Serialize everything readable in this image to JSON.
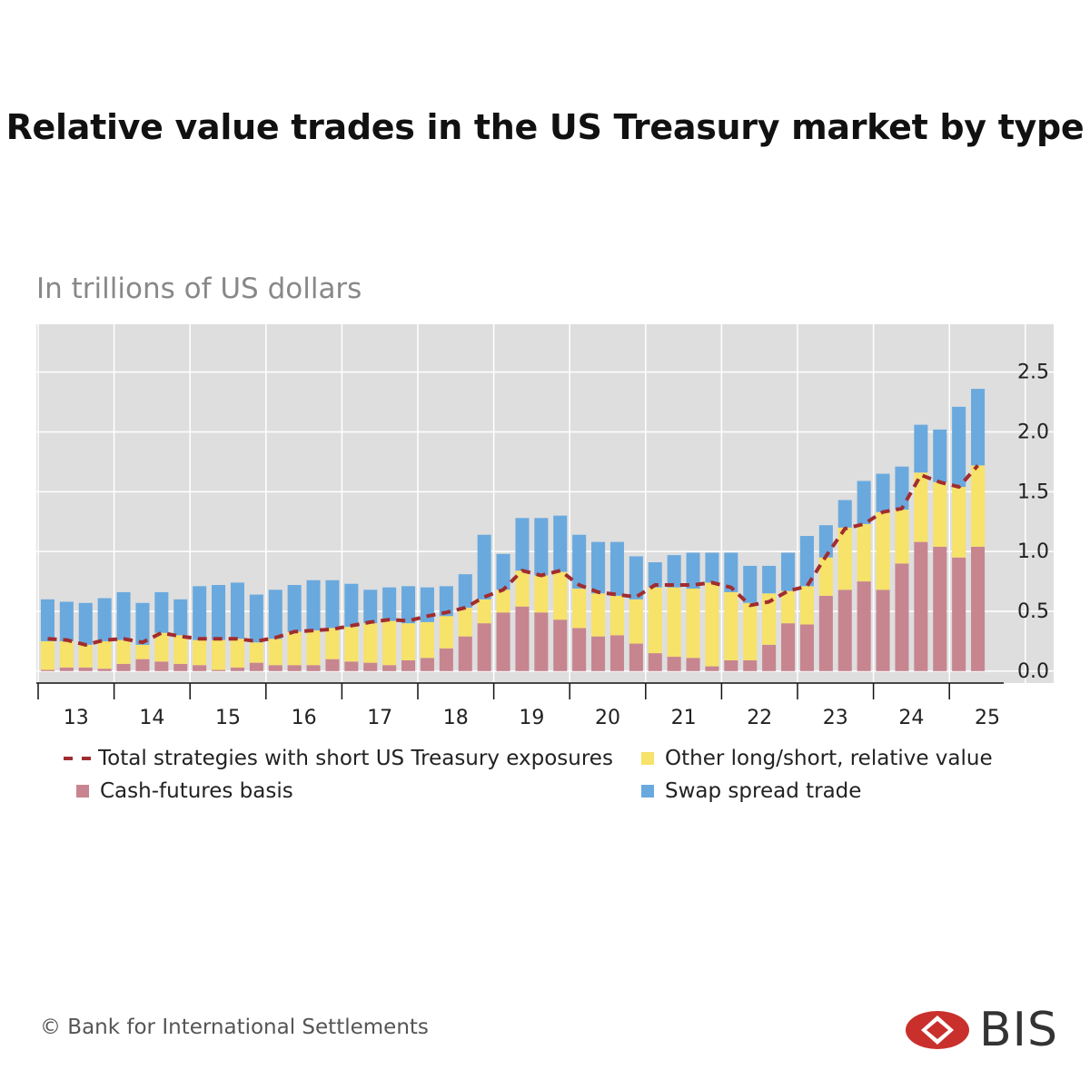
{
  "title": "Relative value trades in the US Treasury market by type",
  "subtitle": "In trillions of US dollars",
  "footer": "© Bank for International Settlements",
  "logo_text": "BIS",
  "colors": {
    "basis": "#c78590",
    "other": "#f7e26a",
    "swap": "#6aa9de",
    "total": "#a12c2f",
    "plot_bg": "#dedede",
    "grid": "#ffffff",
    "logo_red": "#c9302c"
  },
  "legend": {
    "total": "Total strategies with short US Treasury exposures",
    "other": "Other long/short, relative value",
    "basis": "Cash-futures basis",
    "swap": "Swap spread trade"
  },
  "chart_data": {
    "type": "bar",
    "stacked": true,
    "ylim": [
      -0.1,
      2.9
    ],
    "yticks": [
      "0.0",
      "0.5",
      "1.0",
      "1.5",
      "2.0",
      "2.5"
    ],
    "x_labels": [
      "13",
      "14",
      "15",
      "16",
      "17",
      "18",
      "19",
      "20",
      "21",
      "22",
      "23",
      "24",
      "25"
    ],
    "quarters_per_year": 4,
    "series": [
      {
        "name": "Cash-futures basis",
        "key": "basis",
        "values": [
          0.01,
          0.03,
          0.03,
          0.02,
          0.06,
          0.1,
          0.08,
          0.06,
          0.05,
          0.01,
          0.03,
          0.07,
          0.05,
          0.05,
          0.05,
          0.1,
          0.08,
          0.07,
          0.05,
          0.09,
          0.11,
          0.19,
          0.29,
          0.4,
          0.49,
          0.54,
          0.49,
          0.43,
          0.36,
          0.29,
          0.3,
          0.23,
          0.15,
          0.12,
          0.11,
          0.04,
          0.09,
          0.09,
          0.22,
          0.4,
          0.39,
          0.63,
          0.68,
          0.75,
          0.68,
          0.9,
          1.08,
          1.04,
          0.95,
          1.04
        ]
      },
      {
        "name": "Other long/short, relative value",
        "key": "other",
        "values": [
          0.24,
          0.22,
          0.19,
          0.23,
          0.2,
          0.12,
          0.24,
          0.24,
          0.21,
          0.25,
          0.24,
          0.17,
          0.22,
          0.28,
          0.29,
          0.26,
          0.29,
          0.33,
          0.37,
          0.31,
          0.3,
          0.27,
          0.24,
          0.2,
          0.19,
          0.3,
          0.31,
          0.4,
          0.33,
          0.36,
          0.33,
          0.37,
          0.55,
          0.58,
          0.58,
          0.7,
          0.57,
          0.48,
          0.43,
          0.27,
          0.32,
          0.32,
          0.52,
          0.48,
          0.65,
          0.45,
          0.58,
          0.54,
          0.59,
          0.68
        ]
      },
      {
        "name": "Swap spread trade",
        "key": "swap",
        "values": [
          0.35,
          0.33,
          0.35,
          0.36,
          0.4,
          0.35,
          0.34,
          0.3,
          0.45,
          0.46,
          0.47,
          0.4,
          0.41,
          0.39,
          0.42,
          0.4,
          0.36,
          0.28,
          0.28,
          0.31,
          0.29,
          0.25,
          0.28,
          0.54,
          0.3,
          0.44,
          0.48,
          0.47,
          0.45,
          0.43,
          0.45,
          0.36,
          0.21,
          0.27,
          0.3,
          0.25,
          0.33,
          0.31,
          0.23,
          0.32,
          0.42,
          0.27,
          0.23,
          0.36,
          0.32,
          0.36,
          0.4,
          0.44,
          0.67,
          0.64
        ]
      },
      {
        "name": "Total strategies with short US Treasury exposures",
        "key": "total",
        "type": "line",
        "values": [
          0.27,
          0.26,
          0.22,
          0.26,
          0.27,
          0.24,
          0.32,
          0.29,
          0.27,
          0.27,
          0.27,
          0.25,
          0.28,
          0.33,
          0.34,
          0.35,
          0.38,
          0.41,
          0.43,
          0.42,
          0.46,
          0.49,
          0.53,
          0.62,
          0.68,
          0.84,
          0.8,
          0.84,
          0.72,
          0.66,
          0.64,
          0.62,
          0.72,
          0.72,
          0.72,
          0.74,
          0.7,
          0.55,
          0.58,
          0.67,
          0.71,
          0.96,
          1.19,
          1.23,
          1.33,
          1.36,
          1.64,
          1.58,
          1.54,
          1.72
        ]
      }
    ]
  }
}
